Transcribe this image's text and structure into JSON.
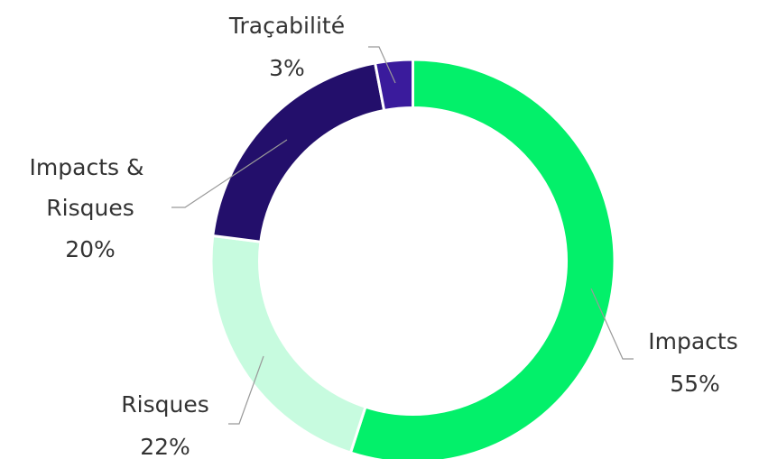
{
  "chart_data": {
    "type": "donut",
    "categories": [
      "Impacts",
      "Risques",
      "Impacts & Risques",
      "Traçabilité"
    ],
    "values": [
      55,
      22,
      20,
      3
    ],
    "value_labels": [
      "55%",
      "22%",
      "20%",
      "3%"
    ],
    "colors": [
      "#03f06a",
      "#c7fbdf",
      "#230f6b",
      "#3a1b9c"
    ]
  }
}
